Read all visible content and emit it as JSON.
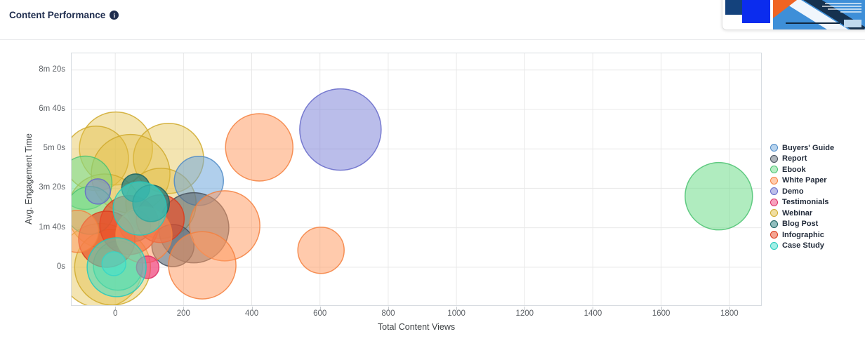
{
  "header": {
    "title": "Content Performance",
    "info_icon": "i"
  },
  "chart_data": {
    "type": "bubble",
    "title": "Content Performance",
    "xlabel": "Total Content Views",
    "ylabel": "Avg. Engagement Time",
    "grid": true,
    "legend_position": "right",
    "x_range": [
      -130,
      1895
    ],
    "y_range_seconds": [
      -98,
      544
    ],
    "x_ticks": [
      0,
      200,
      400,
      600,
      800,
      1000,
      1200,
      1400,
      1600,
      1800
    ],
    "y_ticks": [
      {
        "seconds": 0,
        "label": "0s"
      },
      {
        "seconds": 100,
        "label": "1m 40s"
      },
      {
        "seconds": 200,
        "label": "3m 20s"
      },
      {
        "seconds": 300,
        "label": "5m 0s"
      },
      {
        "seconds": 400,
        "label": "6m 40s"
      },
      {
        "seconds": 500,
        "label": "8m 20s"
      }
    ],
    "draw_order": [
      "Webinar",
      "Ebook",
      "Demo",
      "Buyers' Guide",
      "Report",
      "Infographic",
      "White Paper",
      "Blog Post",
      "Testimonials",
      "Case Study"
    ],
    "series": [
      {
        "name": "Buyers' Guide",
        "fill": "#6FA8DC",
        "stroke": "#4D8AC6",
        "opacity": 0.55,
        "points": [
          {
            "x": 245,
            "y_seconds": 219,
            "y_label": "3m 39s",
            "r": 35
          }
        ]
      },
      {
        "name": "Report",
        "fill": "#5E6A76",
        "stroke": "#454F5B",
        "opacity": 0.62,
        "points": [
          {
            "x": 230,
            "y_seconds": 100,
            "y_label": "1m 40s",
            "r": 50
          },
          {
            "x": 169,
            "y_seconds": 55,
            "y_label": "55s",
            "r": 30
          },
          {
            "x": 58,
            "y_seconds": 105,
            "y_label": "1m 45s",
            "r": 22
          }
        ]
      },
      {
        "name": "Ebook",
        "fill": "#6FDD8B",
        "stroke": "#4BC271",
        "opacity": 0.55,
        "points": [
          {
            "x": -88,
            "y_seconds": 214,
            "y_label": "3m 34s",
            "r": 38
          },
          {
            "x": -74,
            "y_seconds": 144,
            "y_label": "2m 24s",
            "r": 34
          },
          {
            "x": 8,
            "y_seconds": 4,
            "y_label": "4s",
            "r": 35
          },
          {
            "x": 1769,
            "y_seconds": 180,
            "y_label": "3m 0s",
            "r": 48
          }
        ]
      },
      {
        "name": "White Paper",
        "fill": "#FF9A5F",
        "stroke": "#F5803E",
        "opacity": 0.52,
        "points": [
          {
            "x": 422,
            "y_seconds": 304,
            "y_label": "5m 4s",
            "r": 48
          },
          {
            "x": 603,
            "y_seconds": 43,
            "y_label": "43s",
            "r": 33
          },
          {
            "x": 321,
            "y_seconds": 105,
            "y_label": "1m 45s",
            "r": 50
          },
          {
            "x": 255,
            "y_seconds": 5,
            "y_label": "5s",
            "r": 48
          },
          {
            "x": 84,
            "y_seconds": 82,
            "y_label": "1m 22s",
            "r": 40
          },
          {
            "x": -111,
            "y_seconds": 91,
            "y_label": "1m 31s",
            "r": 30
          }
        ]
      },
      {
        "name": "Demo",
        "fill": "#7B80D6",
        "stroke": "#6569C9",
        "opacity": 0.52,
        "points": [
          {
            "x": 660,
            "y_seconds": 349,
            "y_label": "5m 49s",
            "r": 58
          },
          {
            "x": -51,
            "y_seconds": 192,
            "y_label": "3m 12s",
            "r": 18
          }
        ]
      },
      {
        "name": "Testimonials",
        "fill": "#F0437A",
        "stroke": "#DB2E65",
        "opacity": 0.72,
        "points": [
          {
            "x": 95,
            "y_seconds": 0,
            "y_label": "0s",
            "r": 16
          }
        ]
      },
      {
        "name": "Webinar",
        "fill": "#E2BE45",
        "stroke": "#CFA92C",
        "opacity": 0.42,
        "points": [
          {
            "x": 2,
            "y_seconds": 301,
            "y_label": "5m 1s",
            "r": 52
          },
          {
            "x": 156,
            "y_seconds": 276,
            "y_label": "4m 36s",
            "r": 50
          },
          {
            "x": -56,
            "y_seconds": 276,
            "y_label": "4m 36s",
            "r": 46
          },
          {
            "x": 45,
            "y_seconds": 237,
            "y_label": "3m 57s",
            "r": 56
          },
          {
            "x": 134,
            "y_seconds": 162,
            "y_label": "2m 42s",
            "r": 50
          },
          {
            "x": -31,
            "y_seconds": 142,
            "y_label": "2m 22s",
            "r": 53
          },
          {
            "x": -43,
            "y_seconds": 4,
            "y_label": "4s",
            "r": 60
          },
          {
            "x": -8,
            "y_seconds": 0,
            "y_label": "0s",
            "r": 54
          }
        ]
      },
      {
        "name": "Blog Post",
        "fill": "#267D7D",
        "stroke": "#19605F",
        "opacity": 0.78,
        "points": [
          {
            "x": 60,
            "y_seconds": 201,
            "y_label": "3m 21s",
            "r": 20
          },
          {
            "x": 105,
            "y_seconds": 162,
            "y_label": "2m 42s",
            "r": 26
          }
        ]
      },
      {
        "name": "Infographic",
        "fill": "#EA4B28",
        "stroke": "#D93A1C",
        "opacity": 0.68,
        "points": [
          {
            "x": 41,
            "y_seconds": 107,
            "y_label": "1m 47s",
            "r": 42
          },
          {
            "x": 132,
            "y_seconds": 123,
            "y_label": "2m 3s",
            "r": 34
          },
          {
            "x": -25,
            "y_seconds": 71,
            "y_label": "1m 11s",
            "r": 40
          }
        ]
      },
      {
        "name": "Case Study",
        "fill": "#44E0CE",
        "stroke": "#23C9BC",
        "opacity": 0.55,
        "points": [
          {
            "x": -4,
            "y_seconds": 9,
            "y_label": "9s",
            "r": 17
          },
          {
            "x": 4,
            "y_seconds": 0,
            "y_label": "0s",
            "r": 42
          },
          {
            "x": 72,
            "y_seconds": 149,
            "y_label": "2m 29s",
            "r": 38
          }
        ]
      }
    ]
  }
}
